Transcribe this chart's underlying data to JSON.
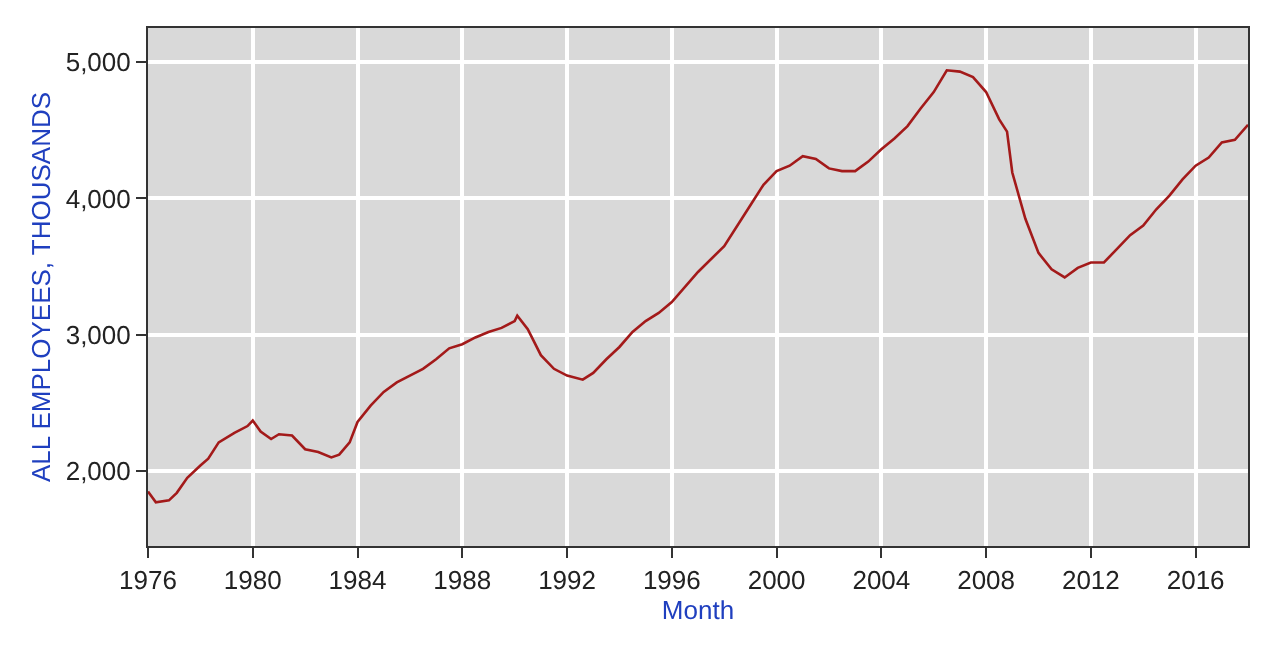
{
  "chart_data": {
    "type": "line",
    "xlabel": "Month",
    "ylabel": "ALL EMPLOYEES, THOUSANDS",
    "x": [
      1976.0,
      1976.3,
      1976.8,
      1977.1,
      1977.5,
      1978.0,
      1978.3,
      1978.7,
      1979.3,
      1979.8,
      1980.0,
      1980.3,
      1980.7,
      1981.0,
      1981.5,
      1982.0,
      1982.5,
      1983.0,
      1983.3,
      1983.7,
      1984.0,
      1984.5,
      1985.0,
      1985.5,
      1986.0,
      1986.5,
      1987.0,
      1987.5,
      1988.0,
      1988.5,
      1989.0,
      1989.5,
      1990.0,
      1990.1,
      1990.5,
      1991.0,
      1991.5,
      1992.0,
      1992.6,
      1993.0,
      1993.5,
      1994.0,
      1994.5,
      1995.0,
      1995.5,
      1996.0,
      1997.0,
      1998.0,
      1999.0,
      1999.5,
      2000.0,
      2000.5,
      2001.0,
      2001.5,
      2002.0,
      2002.5,
      2003.0,
      2003.5,
      2004.0,
      2004.5,
      2005.0,
      2005.5,
      2006.0,
      2006.5,
      2007.0,
      2007.5,
      2008.0,
      2008.5,
      2008.8,
      2009.0,
      2009.5,
      2010.0,
      2010.5,
      2011.0,
      2011.5,
      2012.0,
      2012.5,
      2013.0,
      2013.5,
      2014.0,
      2014.5,
      2015.0,
      2015.5,
      2016.0,
      2016.5,
      2017.0,
      2017.5,
      2018.0
    ],
    "series": [
      {
        "color": "#a31a1a",
        "values": [
          1850,
          1770,
          1785,
          1840,
          1950,
          2040,
          2090,
          2210,
          2280,
          2330,
          2370,
          2290,
          2235,
          2270,
          2260,
          2160,
          2140,
          2100,
          2120,
          2210,
          2360,
          2480,
          2580,
          2650,
          2700,
          2750,
          2820,
          2900,
          2930,
          2980,
          3020,
          3050,
          3100,
          3140,
          3040,
          2850,
          2750,
          2700,
          2670,
          2720,
          2820,
          2910,
          3020,
          3100,
          3160,
          3240,
          3460,
          3650,
          3950,
          4100,
          4200,
          4240,
          4310,
          4290,
          4220,
          4200,
          4200,
          4270,
          4360,
          4440,
          4530,
          4660,
          4780,
          4940,
          4930,
          4890,
          4780,
          4580,
          4490,
          4190,
          3850,
          3600,
          3480,
          3420,
          3490,
          3530,
          3530,
          3630,
          3730,
          3800,
          3920,
          4020,
          4140,
          4240,
          4300,
          4410,
          4430,
          4540
        ]
      }
    ],
    "xlim": [
      1976,
      2018
    ],
    "xticks": [
      1976,
      1980,
      1984,
      1988,
      1992,
      1996,
      2000,
      2004,
      2008,
      2012,
      2016
    ],
    "ylim": [
      1450,
      5250
    ],
    "yticks": [
      {
        "value": 2000,
        "label": "2,000"
      },
      {
        "value": 3000,
        "label": "3,000"
      },
      {
        "value": 4000,
        "label": "4,000"
      },
      {
        "value": 5000,
        "label": "5,000"
      }
    ],
    "grid": true,
    "legend": false,
    "marker": "none",
    "line_style": "solid"
  }
}
